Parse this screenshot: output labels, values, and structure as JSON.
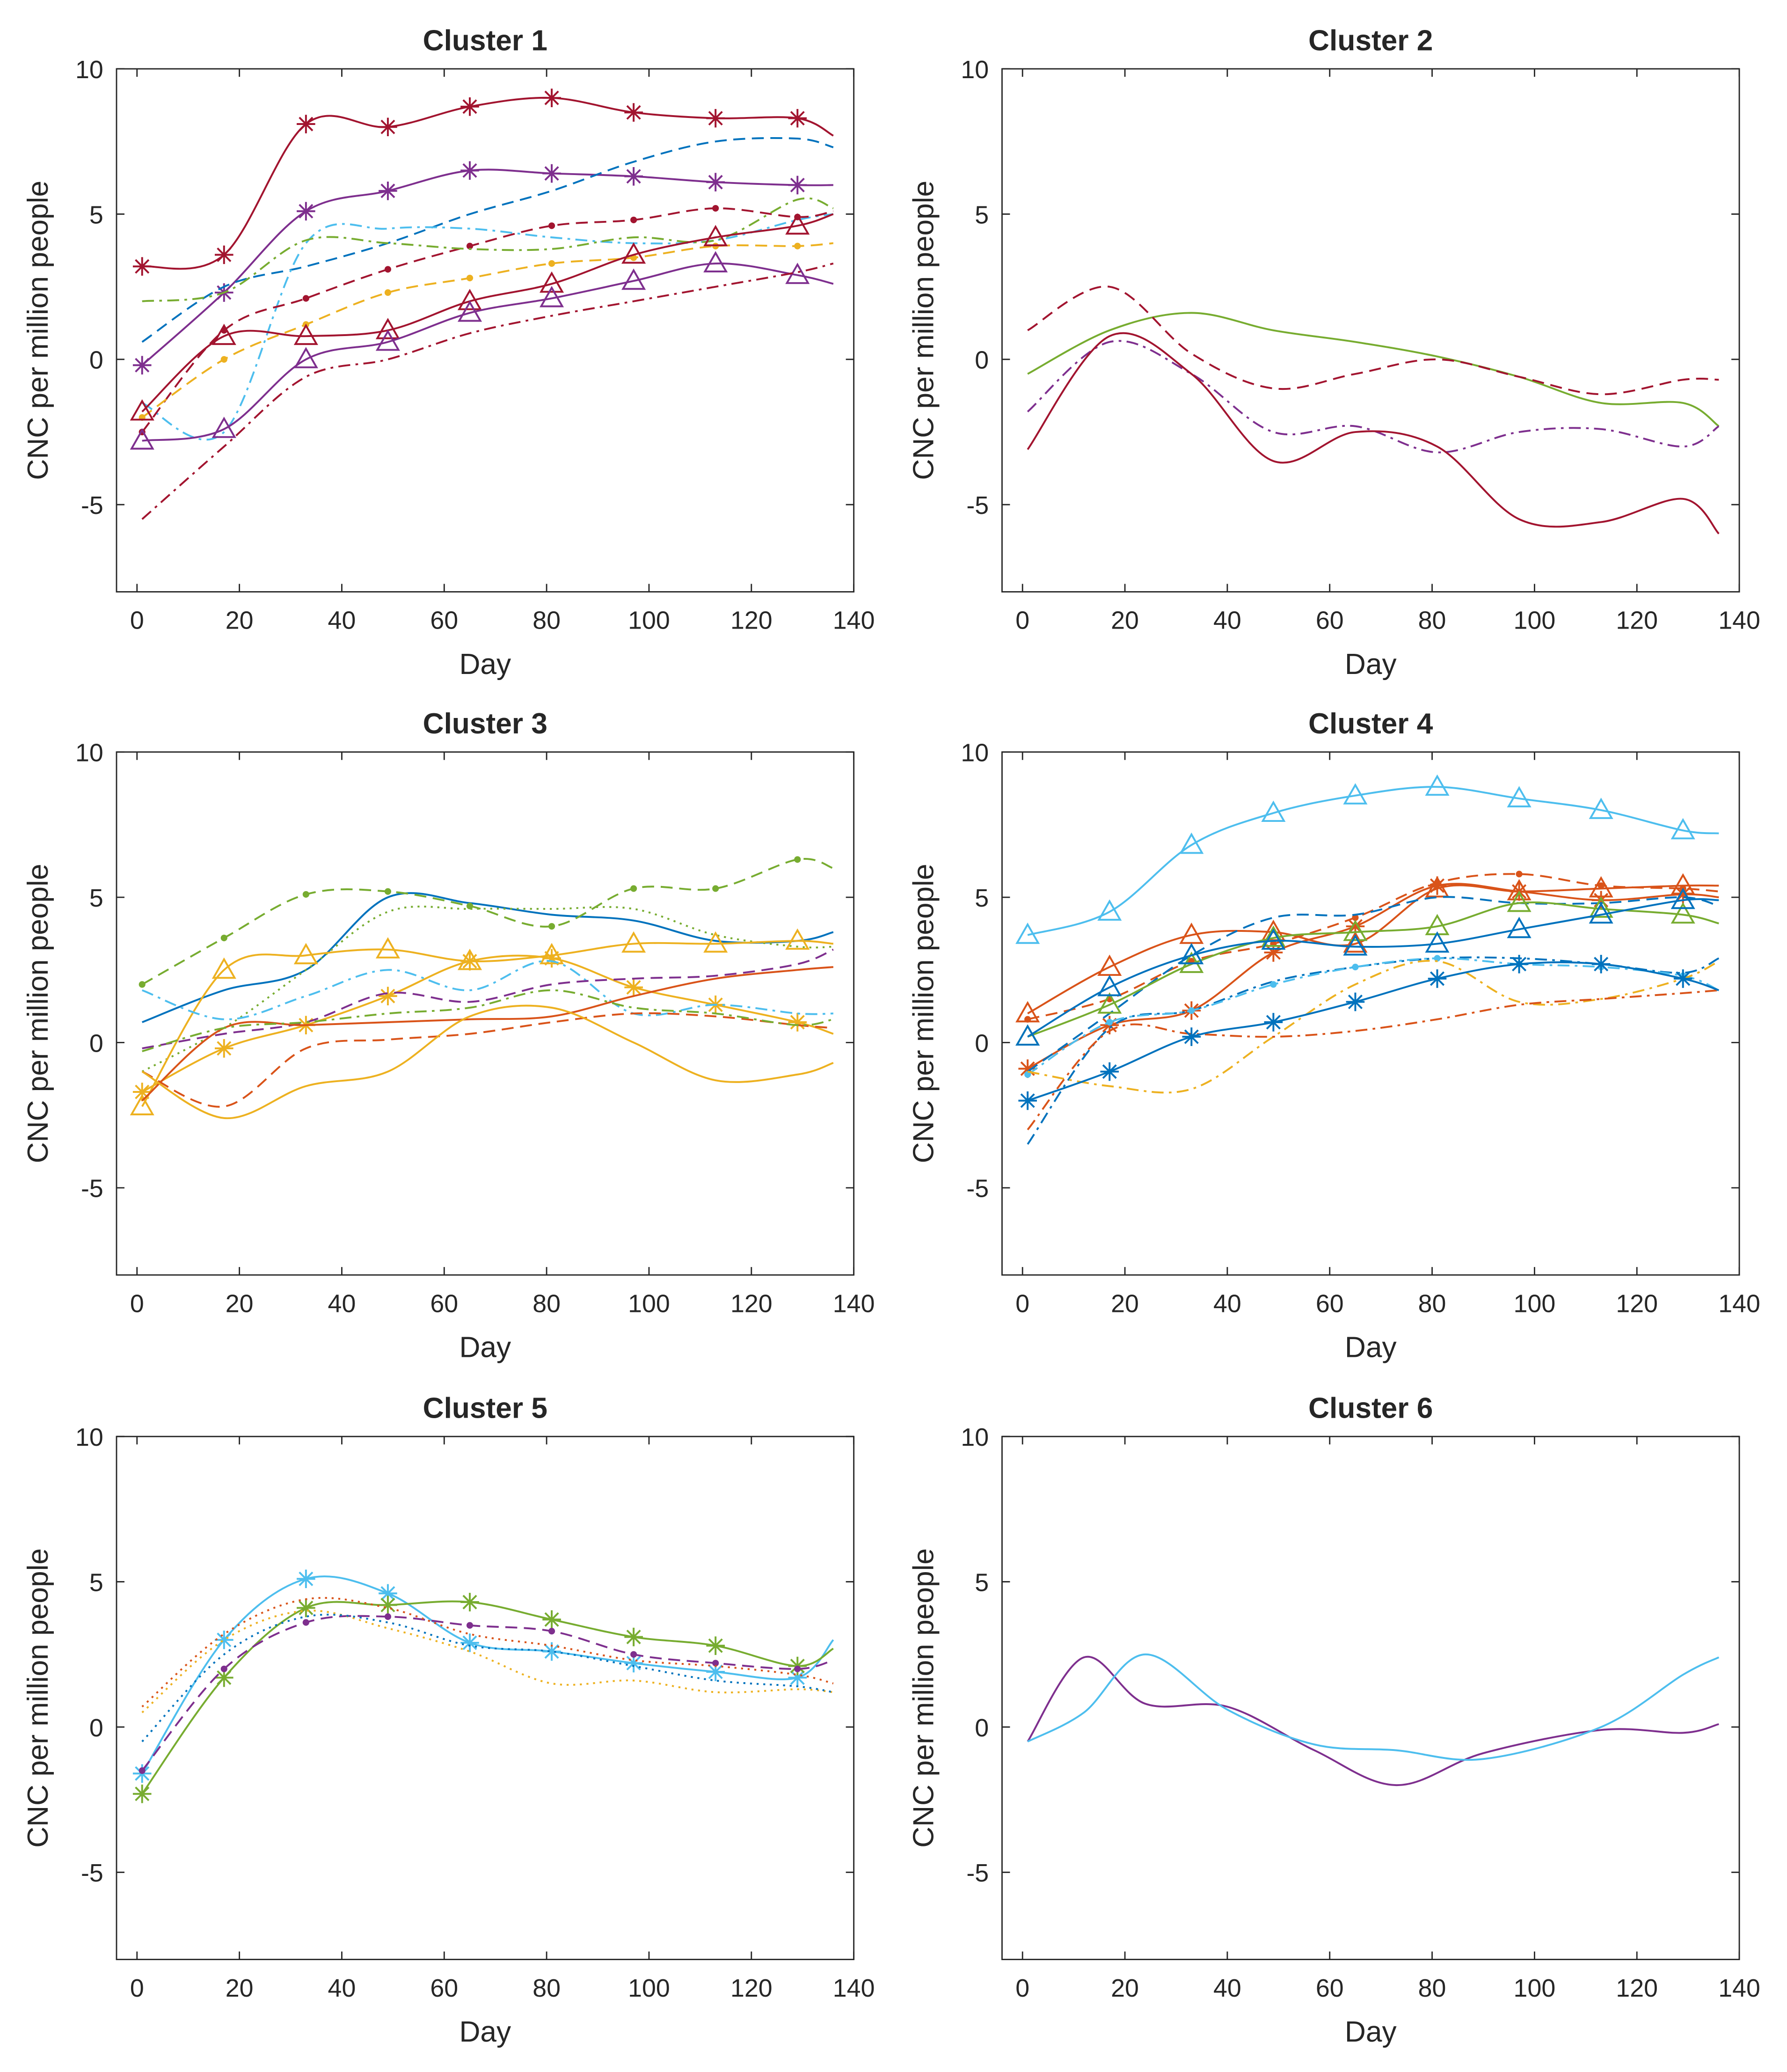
{
  "chart_data": [
    {
      "type": "line",
      "title": "Cluster 1",
      "xlabel": "Day",
      "ylabel": "CNC per million people",
      "xlim": [
        -4,
        140
      ],
      "ylim": [
        -8,
        10
      ],
      "xticks": [
        0,
        20,
        40,
        60,
        80,
        100,
        120,
        140
      ],
      "yticks": [
        -5,
        0,
        5,
        10
      ],
      "grid": false,
      "x": [
        1,
        17,
        33,
        49,
        65,
        81,
        97,
        113,
        129,
        136
      ],
      "series": [
        {
          "color": "#A2142F",
          "dash": "solid",
          "marker": "asterisk",
          "values": [
            3.2,
            3.6,
            8.1,
            8.0,
            8.7,
            9.0,
            8.5,
            8.3,
            8.3,
            7.7
          ]
        },
        {
          "color": "#7E2F8E",
          "dash": "solid",
          "marker": "asterisk",
          "values": [
            -0.2,
            2.3,
            5.1,
            5.8,
            6.5,
            6.4,
            6.3,
            6.1,
            6.0,
            6.0
          ]
        },
        {
          "color": "#0072BD",
          "dash": "dashed",
          "marker": "none",
          "values": [
            0.6,
            2.5,
            3.2,
            4.0,
            5.0,
            5.8,
            6.8,
            7.5,
            7.6,
            7.3
          ]
        },
        {
          "color": "#4DBEEE",
          "dash": "dashdot",
          "marker": "none",
          "values": [
            -1.5,
            -2.5,
            4.0,
            4.5,
            4.5,
            4.2,
            4.0,
            4.1,
            4.8,
            5.0
          ]
        },
        {
          "color": "#A2142F",
          "dash": "dashed",
          "marker": "dot",
          "values": [
            -2.5,
            1.0,
            2.1,
            3.1,
            3.9,
            4.6,
            4.8,
            5.2,
            4.9,
            5.1
          ]
        },
        {
          "color": "#77AC30",
          "dash": "dashdot",
          "marker": "none",
          "values": [
            2.0,
            2.3,
            4.1,
            4.0,
            3.8,
            3.8,
            4.2,
            4.1,
            5.5,
            5.2
          ]
        },
        {
          "color": "#EDB120",
          "dash": "dashed",
          "marker": "dot",
          "values": [
            -2.0,
            0.0,
            1.2,
            2.3,
            2.8,
            3.3,
            3.5,
            3.9,
            3.9,
            4.0
          ]
        },
        {
          "color": "#A2142F",
          "dash": "solid",
          "marker": "triangle",
          "values": [
            -1.8,
            0.8,
            0.8,
            1.0,
            2.0,
            2.6,
            3.6,
            4.2,
            4.6,
            5.0
          ]
        },
        {
          "color": "#7E2F8E",
          "dash": "solid",
          "marker": "triangle",
          "values": [
            -2.8,
            -2.4,
            0.0,
            0.6,
            1.6,
            2.1,
            2.7,
            3.3,
            2.9,
            2.6
          ]
        },
        {
          "color": "#A2142F",
          "dash": "dashdot",
          "marker": "none",
          "values": [
            -5.5,
            -3.0,
            -0.6,
            0.0,
            0.9,
            1.5,
            2.0,
            2.5,
            3.0,
            3.3
          ]
        }
      ]
    },
    {
      "type": "line",
      "title": "Cluster 2",
      "xlabel": "Day",
      "ylabel": "CNC per million people",
      "xlim": [
        -4,
        140
      ],
      "ylim": [
        -8,
        10
      ],
      "xticks": [
        0,
        20,
        40,
        60,
        80,
        100,
        120,
        140
      ],
      "yticks": [
        -5,
        0,
        5,
        10
      ],
      "grid": false,
      "x": [
        1,
        17,
        33,
        49,
        65,
        81,
        97,
        113,
        129,
        136
      ],
      "series": [
        {
          "color": "#77AC30",
          "dash": "solid",
          "marker": "none",
          "values": [
            -0.5,
            1.0,
            1.6,
            1.0,
            0.6,
            0.1,
            -0.6,
            -1.5,
            -1.5,
            -2.3
          ]
        },
        {
          "color": "#A2142F",
          "dash": "dashed",
          "marker": "none",
          "values": [
            1.0,
            2.5,
            0.2,
            -1.0,
            -0.5,
            0.0,
            -0.6,
            -1.2,
            -0.7,
            -0.7
          ]
        },
        {
          "color": "#7E2F8E",
          "dash": "dashdot",
          "marker": "none",
          "values": [
            -1.8,
            0.6,
            -0.5,
            -2.5,
            -2.3,
            -3.2,
            -2.5,
            -2.4,
            -3.0,
            -2.3
          ]
        },
        {
          "color": "#A2142F",
          "dash": "solid",
          "marker": "none",
          "values": [
            -3.1,
            0.8,
            -0.5,
            -3.5,
            -2.5,
            -3.0,
            -5.5,
            -5.6,
            -4.8,
            -6.0
          ]
        }
      ]
    },
    {
      "type": "line",
      "title": "Cluster 3",
      "xlabel": "Day",
      "ylabel": "CNC per million people",
      "xlim": [
        -4,
        140
      ],
      "ylim": [
        -8,
        10
      ],
      "xticks": [
        0,
        20,
        40,
        60,
        80,
        100,
        120,
        140
      ],
      "yticks": [
        -5,
        0,
        5,
        10
      ],
      "grid": false,
      "x": [
        1,
        17,
        33,
        49,
        65,
        81,
        97,
        113,
        129,
        136
      ],
      "series": [
        {
          "color": "#0072BD",
          "dash": "solid",
          "marker": "none",
          "values": [
            0.7,
            1.8,
            2.5,
            5.0,
            4.8,
            4.4,
            4.2,
            3.5,
            3.5,
            3.8
          ]
        },
        {
          "color": "#77AC30",
          "dash": "dashed",
          "marker": "dot",
          "values": [
            2.0,
            3.6,
            5.1,
            5.2,
            4.7,
            4.0,
            5.3,
            5.3,
            6.3,
            6.0
          ]
        },
        {
          "color": "#77AC30",
          "dash": "dotted",
          "marker": "none",
          "values": [
            -1.0,
            0.5,
            2.5,
            4.5,
            4.6,
            4.6,
            4.6,
            3.7,
            3.3,
            3.3
          ]
        },
        {
          "color": "#EDB120",
          "dash": "solid",
          "marker": "triangle",
          "values": [
            -2.2,
            2.5,
            3.0,
            3.2,
            2.8,
            3.0,
            3.4,
            3.4,
            3.5,
            3.4
          ]
        },
        {
          "color": "#EDB120",
          "dash": "solid",
          "marker": "asterisk",
          "values": [
            -1.7,
            -0.2,
            0.6,
            1.6,
            2.8,
            2.9,
            1.9,
            1.3,
            0.7,
            0.3
          ]
        },
        {
          "color": "#4DBEEE",
          "dash": "dashdot",
          "marker": "none",
          "values": [
            1.8,
            0.8,
            1.6,
            2.5,
            1.8,
            2.8,
            1.0,
            1.3,
            1.0,
            1.0
          ]
        },
        {
          "color": "#7E2F8E",
          "dash": "dashed",
          "marker": "none",
          "values": [
            -0.2,
            0.3,
            0.7,
            1.7,
            1.4,
            2.0,
            2.2,
            2.3,
            2.7,
            3.2
          ]
        },
        {
          "color": "#D95319",
          "dash": "dashed",
          "marker": "none",
          "values": [
            -1.0,
            -2.2,
            -0.2,
            0.1,
            0.3,
            0.7,
            1.0,
            0.9,
            0.6,
            0.5
          ]
        },
        {
          "color": "#D95319",
          "dash": "solid",
          "marker": "none",
          "values": [
            -2.0,
            0.5,
            0.6,
            0.7,
            0.8,
            0.9,
            1.6,
            2.2,
            2.5,
            2.6
          ]
        },
        {
          "color": "#77AC30",
          "dash": "dashdot",
          "marker": "none",
          "values": [
            -0.3,
            0.5,
            0.7,
            1.0,
            1.2,
            1.8,
            1.2,
            1.0,
            0.6,
            0.8
          ]
        },
        {
          "color": "#EDB120",
          "dash": "solid",
          "marker": "none",
          "values": [
            -1.0,
            -2.6,
            -1.5,
            -1.0,
            0.9,
            1.2,
            0.0,
            -1.3,
            -1.1,
            -0.7
          ]
        }
      ]
    },
    {
      "type": "line",
      "title": "Cluster 4",
      "xlabel": "Day",
      "ylabel": "CNC per million people",
      "xlim": [
        -4,
        140
      ],
      "ylim": [
        -8,
        10
      ],
      "xticks": [
        0,
        20,
        40,
        60,
        80,
        100,
        120,
        140
      ],
      "yticks": [
        -5,
        0,
        5,
        10
      ],
      "grid": false,
      "x": [
        1,
        17,
        33,
        49,
        65,
        81,
        97,
        113,
        129,
        136
      ],
      "series": [
        {
          "color": "#4DBEEE",
          "dash": "solid",
          "marker": "triangle",
          "values": [
            3.7,
            4.5,
            6.8,
            7.9,
            8.5,
            8.8,
            8.4,
            8.0,
            7.3,
            7.2
          ]
        },
        {
          "color": "#D95319",
          "dash": "solid",
          "marker": "triangle",
          "values": [
            1.0,
            2.6,
            3.7,
            3.8,
            3.4,
            5.3,
            5.2,
            5.3,
            5.4,
            5.4
          ]
        },
        {
          "color": "#D95319",
          "dash": "dashed",
          "marker": "dot",
          "values": [
            0.8,
            1.5,
            2.8,
            3.4,
            4.3,
            5.5,
            5.8,
            5.4,
            5.3,
            5.2
          ]
        },
        {
          "color": "#D95319",
          "dash": "solid",
          "marker": "asterisk",
          "values": [
            -0.9,
            0.6,
            1.1,
            3.1,
            4.0,
            5.4,
            5.2,
            4.9,
            5.1,
            5.0
          ]
        },
        {
          "color": "#0072BD",
          "dash": "dashed",
          "marker": "none",
          "values": [
            -1.0,
            1.0,
            3.0,
            4.3,
            4.4,
            5.0,
            4.8,
            4.8,
            5.0,
            4.7
          ]
        },
        {
          "color": "#77AC30",
          "dash": "solid",
          "marker": "triangle",
          "values": [
            0.2,
            1.3,
            2.7,
            3.6,
            3.8,
            4.0,
            4.8,
            4.6,
            4.4,
            4.1
          ]
        },
        {
          "color": "#0072BD",
          "dash": "solid",
          "marker": "triangle",
          "values": [
            0.2,
            1.9,
            3.0,
            3.5,
            3.3,
            3.4,
            3.9,
            4.4,
            4.9,
            4.9
          ]
        },
        {
          "color": "#0072BD",
          "dash": "dashdot",
          "marker": "none",
          "values": [
            -3.5,
            0.5,
            1.1,
            2.1,
            2.6,
            2.9,
            2.9,
            2.7,
            2.4,
            2.9
          ]
        },
        {
          "color": "#4DBEEE",
          "dash": "dashdot",
          "marker": "dot",
          "values": [
            -1.1,
            0.7,
            1.1,
            2.0,
            2.6,
            2.9,
            2.7,
            2.6,
            2.3,
            1.8
          ]
        },
        {
          "color": "#EDB120",
          "dash": "dashdot",
          "marker": "none",
          "values": [
            -1.0,
            -1.5,
            -1.6,
            0.2,
            2.0,
            2.8,
            1.4,
            1.5,
            2.2,
            2.8
          ]
        },
        {
          "color": "#D95319",
          "dash": "dashdot",
          "marker": "none",
          "values": [
            -3.0,
            0.4,
            0.3,
            0.2,
            0.4,
            0.8,
            1.3,
            1.5,
            1.7,
            1.8
          ]
        },
        {
          "color": "#0072BD",
          "dash": "solid",
          "marker": "asterisk",
          "values": [
            -2.0,
            -1.0,
            0.2,
            0.7,
            1.4,
            2.2,
            2.7,
            2.7,
            2.2,
            1.8
          ]
        }
      ]
    },
    {
      "type": "line",
      "title": "Cluster 5",
      "xlabel": "Day",
      "ylabel": "CNC per million people",
      "xlim": [
        -4,
        140
      ],
      "ylim": [
        -8,
        10
      ],
      "xticks": [
        0,
        20,
        40,
        60,
        80,
        100,
        120,
        140
      ],
      "yticks": [
        -5,
        0,
        5,
        10
      ],
      "grid": false,
      "x": [
        1,
        17,
        33,
        49,
        65,
        81,
        97,
        113,
        129,
        136
      ],
      "series": [
        {
          "color": "#4DBEEE",
          "dash": "solid",
          "marker": "asterisk",
          "values": [
            -1.6,
            3.0,
            5.1,
            4.6,
            2.9,
            2.6,
            2.2,
            1.9,
            1.7,
            3.0
          ]
        },
        {
          "color": "#77AC30",
          "dash": "solid",
          "marker": "asterisk",
          "values": [
            -2.3,
            1.7,
            4.1,
            4.2,
            4.3,
            3.7,
            3.1,
            2.8,
            2.1,
            2.7
          ]
        },
        {
          "color": "#7E2F8E",
          "dash": "dashed",
          "marker": "dot",
          "values": [
            -1.5,
            2.0,
            3.6,
            3.8,
            3.5,
            3.3,
            2.5,
            2.2,
            2.0,
            2.3
          ]
        },
        {
          "color": "#D95319",
          "dash": "dotted",
          "marker": "none",
          "values": [
            0.7,
            3.2,
            4.4,
            4.1,
            3.2,
            2.8,
            2.3,
            2.1,
            1.8,
            1.5
          ]
        },
        {
          "color": "#EDB120",
          "dash": "dotted",
          "marker": "none",
          "values": [
            0.5,
            3.0,
            4.0,
            3.4,
            2.6,
            1.5,
            1.6,
            1.2,
            1.3,
            1.2
          ]
        },
        {
          "color": "#0072BD",
          "dash": "dotted",
          "marker": "none",
          "values": [
            -0.5,
            2.5,
            3.8,
            3.6,
            2.8,
            2.6,
            2.1,
            1.6,
            1.4,
            1.2
          ]
        }
      ]
    },
    {
      "type": "line",
      "title": "Cluster 6",
      "xlabel": "Day",
      "ylabel": "CNC per million people",
      "xlim": [
        -4,
        140
      ],
      "ylim": [
        -8,
        10
      ],
      "xticks": [
        0,
        20,
        40,
        60,
        80,
        100,
        120,
        140
      ],
      "yticks": [
        -5,
        0,
        5,
        10
      ],
      "grid": false,
      "x": [
        1,
        12,
        24,
        40,
        57,
        73,
        90,
        113,
        129,
        136
      ],
      "series": [
        {
          "color": "#7E2F8E",
          "dash": "solid",
          "marker": "none",
          "values": [
            -0.5,
            2.4,
            0.8,
            0.7,
            -0.8,
            -2.0,
            -0.9,
            -0.1,
            -0.2,
            0.1
          ]
        },
        {
          "color": "#4DBEEE",
          "dash": "solid",
          "marker": "none",
          "values": [
            -0.5,
            0.5,
            2.5,
            0.6,
            -0.6,
            -0.8,
            -1.1,
            0.0,
            1.8,
            2.4
          ]
        }
      ]
    }
  ]
}
